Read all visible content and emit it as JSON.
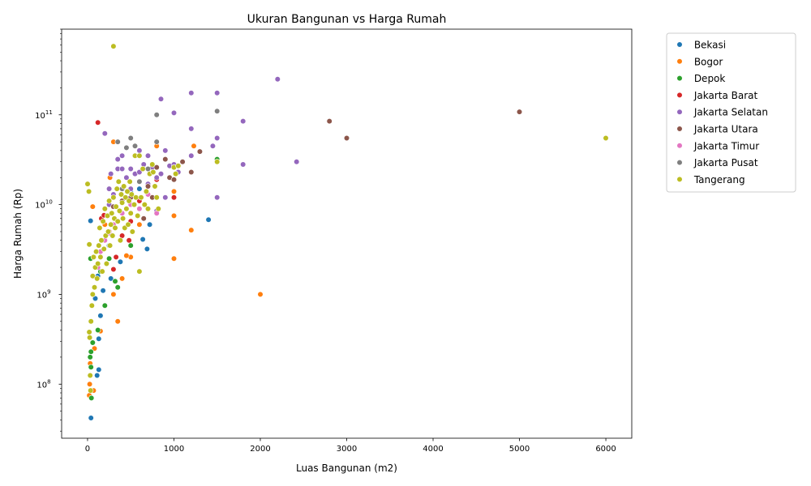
{
  "chart_data": {
    "type": "scatter",
    "title": "Ukuran Bangunan vs Harga Rumah",
    "xlabel": "Luas Bangunan (m2)",
    "ylabel": "Harga Rumah (Rp)",
    "xlim": [
      -300,
      6300
    ],
    "ylim": [
      25000000,
      900000000000
    ],
    "yscale": "log",
    "x_ticks": [
      0,
      1000,
      2000,
      3000,
      4000,
      5000,
      6000
    ],
    "x_tick_labels": [
      "0",
      "1000",
      "2000",
      "3000",
      "4000",
      "5000",
      "6000"
    ],
    "y_ticks": [
      100000000,
      1000000000,
      10000000000,
      100000000000
    ],
    "y_tick_labels": [
      "10^8",
      "10^9",
      "10^10",
      "10^11"
    ],
    "grid": false,
    "legend_position": "outside-right",
    "series": [
      {
        "name": " Bekasi",
        "color": "#1f77b4",
        "points": [
          [
            35,
            6600000000.0
          ],
          [
            40,
            42000000.0
          ],
          [
            110,
            125000000.0
          ],
          [
            130,
            145000000.0
          ],
          [
            130,
            320000000.0
          ],
          [
            150,
            580000000.0
          ],
          [
            180,
            1100000000.0
          ],
          [
            270,
            1500000000.0
          ],
          [
            380,
            2300000000.0
          ],
          [
            640,
            4100000000.0
          ],
          [
            690,
            3200000000.0
          ],
          [
            720,
            6000000000.0
          ],
          [
            1400,
            6800000000.0
          ],
          [
            500,
            14000000000.0
          ],
          [
            600,
            15000000000.0
          ],
          [
            250,
            3500000000.0
          ],
          [
            90,
            900000000.0
          ],
          [
            120,
            1600000000.0
          ]
        ]
      },
      {
        "name": " Bogor",
        "color": "#ff7f0e",
        "points": [
          [
            20,
            75000000.0
          ],
          [
            25,
            100000000.0
          ],
          [
            30,
            170000000.0
          ],
          [
            60,
            9500000000.0
          ],
          [
            70,
            85000000.0
          ],
          [
            80,
            250000000.0
          ],
          [
            150,
            390000000.0
          ],
          [
            260,
            20000000000.0
          ],
          [
            300,
            50000000000.0
          ],
          [
            300,
            1000000000.0
          ],
          [
            350,
            500000000.0
          ],
          [
            400,
            1500000000.0
          ],
          [
            500,
            2600000000.0
          ],
          [
            600,
            6000000000.0
          ],
          [
            800,
            45000000000.0
          ],
          [
            1000,
            2500000000.0
          ],
          [
            1000,
            7500000000.0
          ],
          [
            1000,
            14000000000.0
          ],
          [
            1200,
            5200000000.0
          ],
          [
            1230,
            45000000000.0
          ],
          [
            1500,
            31000000000.0
          ],
          [
            2000,
            1000000000.0
          ],
          [
            200,
            6000000000.0
          ],
          [
            450,
            2700000000.0
          ]
        ]
      },
      {
        "name": " Depok",
        "color": "#2ca02c",
        "points": [
          [
            30,
            200000000.0
          ],
          [
            35,
            2500000000.0
          ],
          [
            40,
            230000000.0
          ],
          [
            40,
            155000000.0
          ],
          [
            45,
            70000000.0
          ],
          [
            60,
            290000000.0
          ],
          [
            120,
            400000000.0
          ],
          [
            200,
            750000000.0
          ],
          [
            320,
            1400000000.0
          ],
          [
            350,
            1200000000.0
          ],
          [
            500,
            3500000000.0
          ],
          [
            1500,
            32000000000.0
          ],
          [
            150,
            1800000000.0
          ],
          [
            250,
            2500000000.0
          ]
        ]
      },
      {
        "name": " Jakarta Barat",
        "color": "#d62728",
        "points": [
          [
            120,
            82000000000.0
          ],
          [
            160,
            7000000000.0
          ],
          [
            190,
            7600000000.0
          ],
          [
            250,
            5000000000.0
          ],
          [
            300,
            1900000000.0
          ],
          [
            400,
            4500000000.0
          ],
          [
            480,
            4000000000.0
          ],
          [
            500,
            6500000000.0
          ],
          [
            600,
            11000000000.0
          ],
          [
            650,
            7000000000.0
          ],
          [
            800,
            19000000000.0
          ],
          [
            1000,
            12000000000.0
          ],
          [
            330,
            2600000000.0
          ]
        ]
      },
      {
        "name": " Jakarta Selatan",
        "color": "#9467bd",
        "points": [
          [
            200,
            62000000000.0
          ],
          [
            250,
            15000000000.0
          ],
          [
            270,
            22000000000.0
          ],
          [
            300,
            13000000000.0
          ],
          [
            350,
            32000000000.0
          ],
          [
            350,
            25000000000.0
          ],
          [
            400,
            35000000000.0
          ],
          [
            400,
            25000000000.0
          ],
          [
            450,
            20000000000.0
          ],
          [
            500,
            25000000000.0
          ],
          [
            500,
            15000000000.0
          ],
          [
            550,
            22000000000.0
          ],
          [
            600,
            40000000000.0
          ],
          [
            600,
            23000000000.0
          ],
          [
            650,
            28000000000.0
          ],
          [
            700,
            35000000000.0
          ],
          [
            700,
            17000000000.0
          ],
          [
            750,
            26000000000.0
          ],
          [
            800,
            20000000000.0
          ],
          [
            800,
            8500000000.0
          ],
          [
            850,
            150000000000.0
          ],
          [
            850,
            22000000000.0
          ],
          [
            900,
            40000000000.0
          ],
          [
            900,
            12000000000.0
          ],
          [
            950,
            27000000000.0
          ],
          [
            1000,
            105000000000.0
          ],
          [
            1000,
            28000000000.0
          ],
          [
            1050,
            23000000000.0
          ],
          [
            1200,
            175000000000.0
          ],
          [
            1200,
            70000000000.0
          ],
          [
            1200,
            35000000000.0
          ],
          [
            1450,
            45000000000.0
          ],
          [
            1500,
            175000000000.0
          ],
          [
            1500,
            55000000000.0
          ],
          [
            1500,
            12000000000.0
          ],
          [
            1800,
            85000000000.0
          ],
          [
            1800,
            28000000000.0
          ],
          [
            2200,
            250000000000.0
          ],
          [
            2420,
            30000000000.0
          ],
          [
            450,
            9000000000.0
          ],
          [
            250,
            10000000000.0
          ]
        ]
      },
      {
        "name": " Jakarta Utara",
        "color": "#8c564b",
        "points": [
          [
            150,
            3000000000.0
          ],
          [
            300,
            9500000000.0
          ],
          [
            400,
            11000000000.0
          ],
          [
            500,
            12000000000.0
          ],
          [
            600,
            18000000000.0
          ],
          [
            700,
            16000000000.0
          ],
          [
            750,
            12000000000.0
          ],
          [
            800,
            26000000000.0
          ],
          [
            900,
            32000000000.0
          ],
          [
            950,
            20000000000.0
          ],
          [
            1000,
            19000000000.0
          ],
          [
            1100,
            30000000000.0
          ],
          [
            1200,
            23000000000.0
          ],
          [
            1300,
            39000000000.0
          ],
          [
            2800,
            85000000000.0
          ],
          [
            3000,
            55000000000.0
          ],
          [
            5000,
            108000000000.0
          ],
          [
            650,
            7000000000.0
          ]
        ]
      },
      {
        "name": " Jakarta Timur",
        "color": "#e377c2",
        "points": [
          [
            80,
            1200000000.0
          ],
          [
            120,
            2000000000.0
          ],
          [
            150,
            3000000000.0
          ],
          [
            200,
            4000000000.0
          ],
          [
            300,
            6000000000.0
          ],
          [
            400,
            8000000000.0
          ],
          [
            500,
            10000000000.0
          ],
          [
            600,
            9000000000.0
          ],
          [
            800,
            8000000000.0
          ],
          [
            700,
            13000000000.0
          ],
          [
            250,
            4800000000.0
          ]
        ]
      },
      {
        "name": " Jakarta Pusat",
        "color": "#7f7f7f",
        "points": [
          [
            350,
            50000000000.0
          ],
          [
            450,
            43000000000.0
          ],
          [
            500,
            55000000000.0
          ],
          [
            550,
            45000000000.0
          ],
          [
            800,
            100000000000.0
          ],
          [
            800,
            50000000000.0
          ],
          [
            1500,
            110000000000.0
          ],
          [
            600,
            18000000000.0
          ],
          [
            400,
            15000000000.0
          ],
          [
            700,
            25000000000.0
          ]
        ]
      },
      {
        "name": " Tangerang",
        "color": "#bcbd22",
        "points": [
          [
            0,
            17000000000.0
          ],
          [
            15,
            14000000000.0
          ],
          [
            20,
            3600000000.0
          ],
          [
            20,
            380000000.0
          ],
          [
            25,
            330000000.0
          ],
          [
            30,
            125000000.0
          ],
          [
            35,
            85000000.0
          ],
          [
            40,
            500000000.0
          ],
          [
            50,
            750000000.0
          ],
          [
            60,
            1000000000.0
          ],
          [
            60,
            1600000000.0
          ],
          [
            70,
            2600000000.0
          ],
          [
            80,
            1200000000.0
          ],
          [
            90,
            2000000000.0
          ],
          [
            100,
            3000000000.0
          ],
          [
            110,
            1500000000.0
          ],
          [
            120,
            2200000000.0
          ],
          [
            130,
            3500000000.0
          ],
          [
            140,
            5500000000.0
          ],
          [
            150,
            2600000000.0
          ],
          [
            160,
            4000000000.0
          ],
          [
            170,
            1800000000.0
          ],
          [
            180,
            6500000000.0
          ],
          [
            190,
            3200000000.0
          ],
          [
            200,
            9000000000.0
          ],
          [
            210,
            4500000000.0
          ],
          [
            220,
            2200000000.0
          ],
          [
            230,
            7500000000.0
          ],
          [
            240,
            5000000000.0
          ],
          [
            250,
            11000000000.0
          ],
          [
            260,
            3500000000.0
          ],
          [
            270,
            6000000000.0
          ],
          [
            280,
            8000000000.0
          ],
          [
            290,
            4500000000.0
          ],
          [
            300,
            580000000000.0
          ],
          [
            300,
            12000000000.0
          ],
          [
            310,
            7000000000.0
          ],
          [
            320,
            5500000000.0
          ],
          [
            330,
            9500000000.0
          ],
          [
            340,
            15000000000.0
          ],
          [
            350,
            6500000000.0
          ],
          [
            360,
            18000000000.0
          ],
          [
            370,
            8500000000.0
          ],
          [
            380,
            4000000000.0
          ],
          [
            390,
            13000000000.0
          ],
          [
            400,
            10500000000.0
          ],
          [
            410,
            7000000000.0
          ],
          [
            420,
            16000000000.0
          ],
          [
            430,
            5500000000.0
          ],
          [
            440,
            12000000000.0
          ],
          [
            450,
            9000000000.0
          ],
          [
            460,
            14000000000.0
          ],
          [
            470,
            6000000000.0
          ],
          [
            480,
            11000000000.0
          ],
          [
            490,
            18000000000.0
          ],
          [
            500,
            8000000000.0
          ],
          [
            510,
            13000000000.0
          ],
          [
            520,
            5000000000.0
          ],
          [
            540,
            10000000000.0
          ],
          [
            550,
            35000000000.0
          ],
          [
            560,
            12000000000.0
          ],
          [
            580,
            7500000000.0
          ],
          [
            600,
            1800000000.0
          ],
          [
            600,
            35000000000.0
          ],
          [
            620,
            12000000000.0
          ],
          [
            640,
            25000000000.0
          ],
          [
            660,
            10000000000.0
          ],
          [
            680,
            14000000000.0
          ],
          [
            700,
            9000000000.0
          ],
          [
            720,
            22000000000.0
          ],
          [
            750,
            28000000000.0
          ],
          [
            760,
            23000000000.0
          ],
          [
            780,
            16000000000.0
          ],
          [
            800,
            12000000000.0
          ],
          [
            820,
            9000000000.0
          ],
          [
            1000,
            26000000000.0
          ],
          [
            1020,
            22000000000.0
          ],
          [
            1050,
            27000000000.0
          ],
          [
            1500,
            30000000000.0
          ],
          [
            6000,
            55000000000.0
          ]
        ]
      }
    ]
  }
}
